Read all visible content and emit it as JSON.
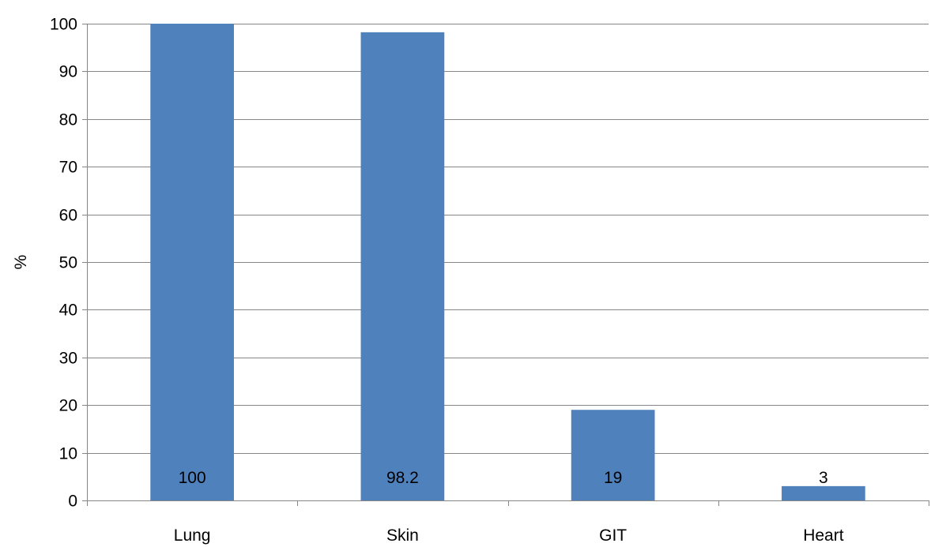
{
  "chart_data": {
    "type": "bar",
    "categories": [
      "Lung",
      "Skin",
      "GIT",
      "Heart"
    ],
    "values": [
      100,
      98.2,
      19,
      3
    ],
    "data_labels": [
      "100",
      "98.2",
      "19",
      "3"
    ],
    "ylabel": "%",
    "ylim": [
      0,
      100
    ],
    "yticks": [
      0,
      10,
      20,
      30,
      40,
      50,
      60,
      70,
      80,
      90,
      100
    ],
    "grid": true,
    "legend": "none",
    "bar_color": "#4f81bd",
    "grid_color": "#868686"
  }
}
